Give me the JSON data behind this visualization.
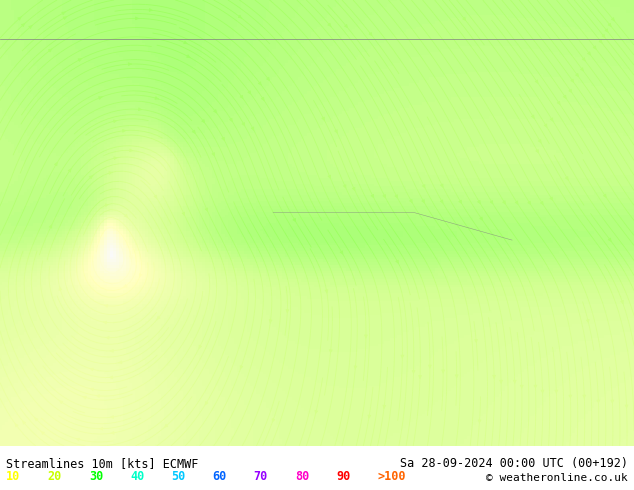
{
  "title_left": "Streamlines 10m [kts] ECMWF",
  "title_right": "Sa 28-09-2024 00:00 UTC (00+192)",
  "copyright": "© weatheronline.co.uk",
  "legend_values": [
    "10",
    "20",
    "30",
    "40",
    "50",
    "60",
    "70",
    "80",
    "90",
    ">100"
  ],
  "legend_colors": [
    "#ffff00",
    "#c8ff00",
    "#00ff00",
    "#00ffc8",
    "#00c8ff",
    "#0064ff",
    "#9600ff",
    "#ff00c8",
    "#ff0000",
    "#ff6400"
  ],
  "bg_color": "#ffffff",
  "bottom_bar_color": "#ffffff",
  "map_bg": "#f0f0f0",
  "figsize": [
    6.34,
    4.9
  ],
  "dpi": 100
}
